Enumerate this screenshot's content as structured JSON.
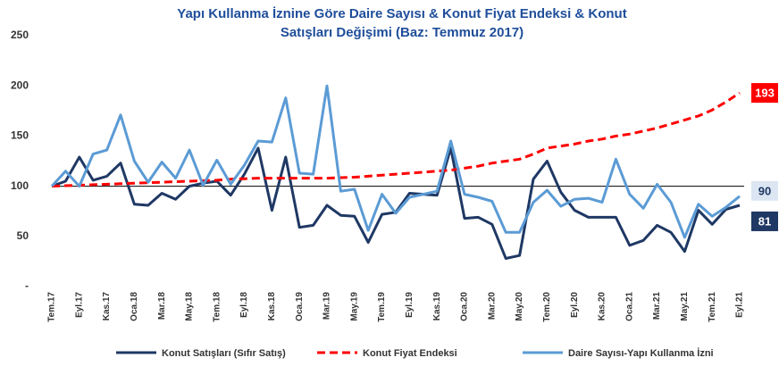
{
  "chart_data": {
    "type": "line",
    "title": [
      "Yapı Kullanma İznine Göre Daire Sayısı & Konut Fiyat  Endeksi & Konut",
      "Satışları Değişimi (Baz: Temmuz 2017)"
    ],
    "categories": [
      "Tem.17",
      null,
      "Eyl.17",
      null,
      "Kas.17",
      null,
      "Oca.18",
      null,
      "Mar.18",
      null,
      "May.18",
      null,
      "Tem.18",
      null,
      "Eyl.18",
      null,
      "Kas.18",
      null,
      "Oca.19",
      null,
      "Mar.19",
      null,
      "May.19",
      null,
      "Tem.19",
      null,
      "Eyl.19",
      null,
      "Kas.19",
      null,
      "Oca.20",
      null,
      "Mar.20",
      null,
      "May.20",
      null,
      "Tem.20",
      null,
      "Eyl.20",
      null,
      "Kas.20",
      null,
      "Oca.21",
      null,
      "Mar.21",
      null,
      "May.21",
      null,
      "Tem.21",
      null,
      "Eyl.21"
    ],
    "series": [
      {
        "name": "Konut Satışları (Sıfır Satış)",
        "color": "#1f3864",
        "dash": false,
        "values": [
          100,
          105,
          129,
          106,
          110,
          123,
          82,
          81,
          93,
          87,
          100,
          103,
          105,
          91,
          112,
          138,
          76,
          129,
          59,
          61,
          81,
          71,
          70,
          44,
          72,
          74,
          93,
          92,
          91,
          138,
          68,
          69,
          62,
          28,
          31,
          107,
          125,
          94,
          76,
          69,
          69,
          69,
          41,
          46,
          61,
          54,
          35,
          76,
          62,
          77,
          81
        ]
      },
      {
        "name": "Konut Fiyat Endeksi",
        "color": "#ff0000",
        "dash": true,
        "values": [
          100,
          100.5,
          101,
          101.5,
          102,
          102.5,
          103,
          103.5,
          104,
          104.5,
          105,
          105.5,
          106,
          107,
          107.5,
          108,
          108,
          108,
          108,
          108,
          108,
          108.5,
          109,
          110,
          111,
          112,
          113,
          114,
          115,
          116,
          118,
          120,
          123,
          125,
          127,
          132,
          138,
          140,
          142,
          145,
          147,
          150,
          152,
          155,
          158,
          162,
          166,
          170,
          176,
          184,
          193
        ]
      },
      {
        "name": "Daire Sayısı-Yapı Kullanma İzni",
        "color": "#5b9bd5",
        "dash": false,
        "values": [
          100,
          115,
          100,
          132,
          136,
          171,
          125,
          104,
          124,
          108,
          136,
          101,
          126,
          102,
          121,
          145,
          144,
          188,
          113,
          112,
          200,
          95,
          97,
          56,
          92,
          73,
          89,
          92,
          95,
          145,
          92,
          89,
          85,
          54,
          54,
          84,
          96,
          80,
          87,
          88,
          84,
          127,
          92,
          78,
          102,
          84,
          49,
          82,
          70,
          79,
          90
        ]
      }
    ],
    "ylim": [
      0,
      250
    ],
    "yticks": [
      {
        "value": 0,
        "label": "-"
      },
      50,
      100,
      150,
      200,
      250
    ],
    "reference_line": 100,
    "legend": "bottom"
  }
}
